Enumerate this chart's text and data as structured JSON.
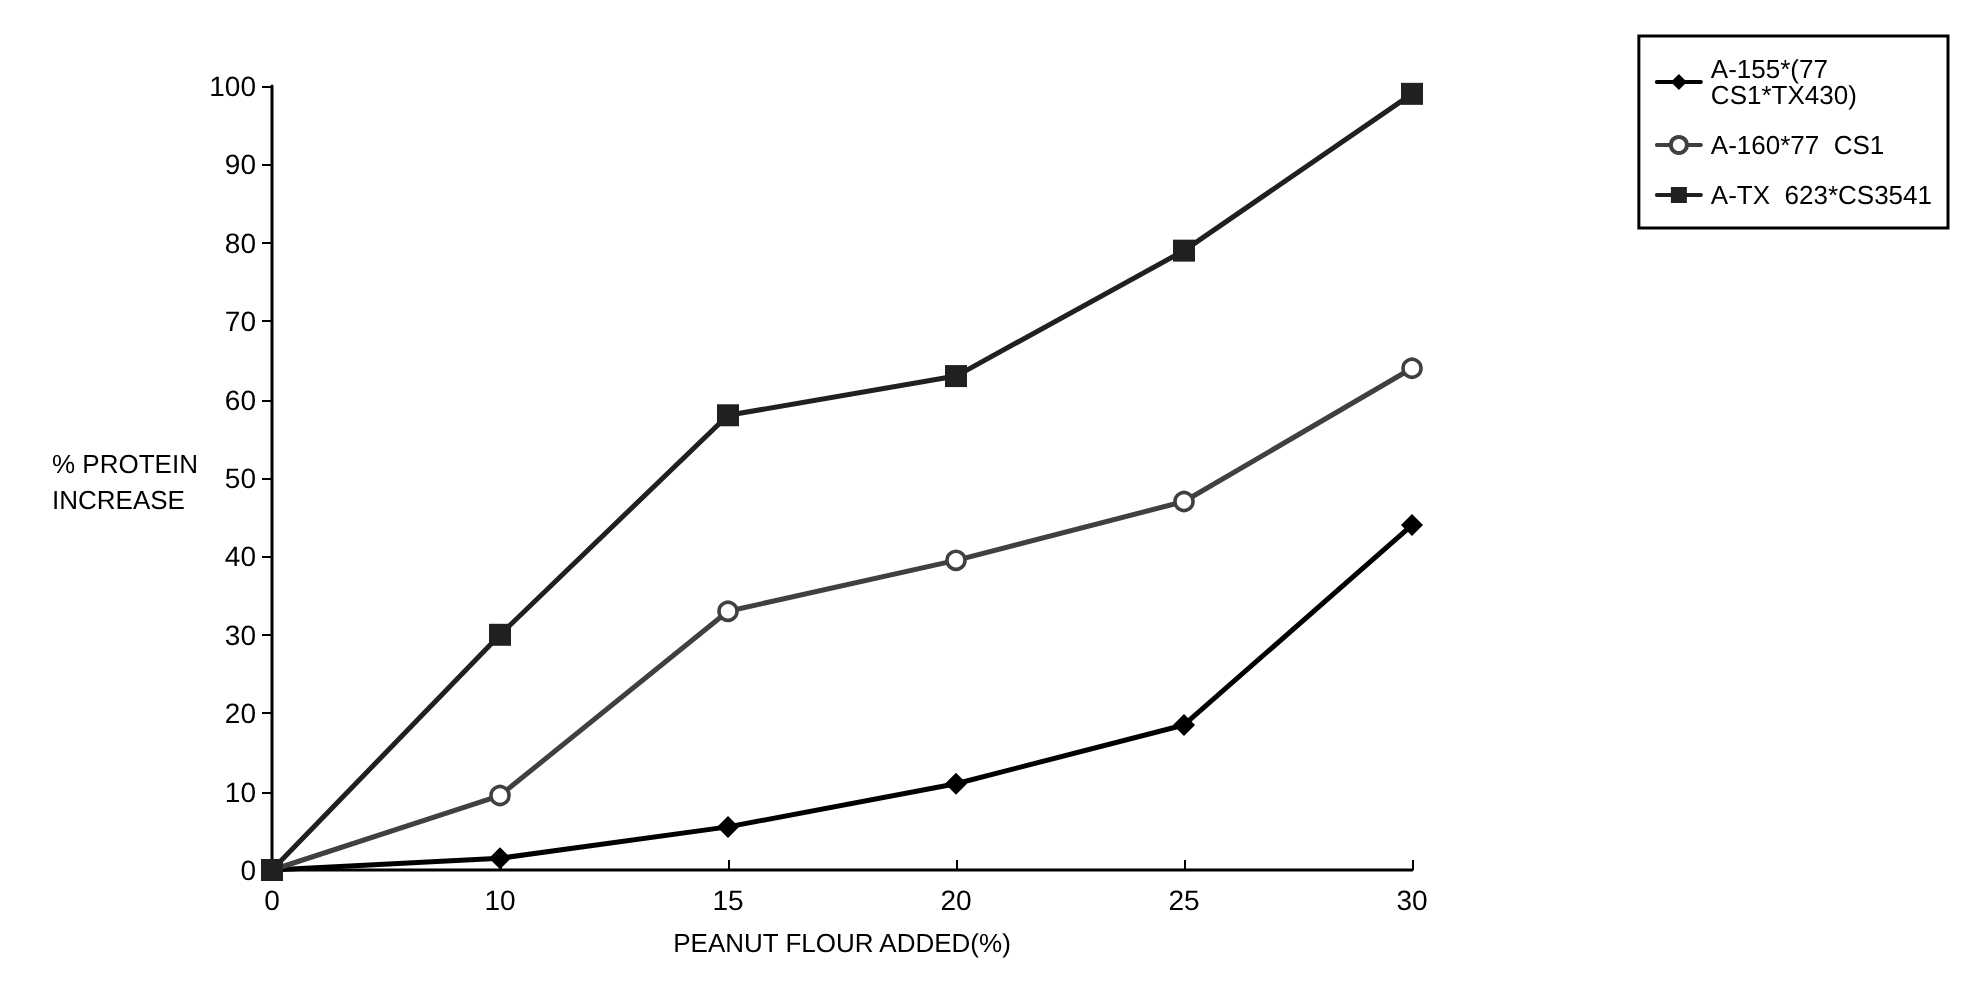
{
  "chart_data": {
    "type": "line",
    "xlabel": "PEANUT FLOUR ADDED(%)",
    "ylabel": "% PROTEIN INCREASE",
    "categories": [
      "0",
      "10",
      "15",
      "20",
      "25",
      "30"
    ],
    "series": [
      {
        "name": "A-155*(77 CS1*TX430)",
        "color": "#000000",
        "marker": "diamond",
        "values": [
          0,
          1.5,
          5.5,
          11,
          18.5,
          44
        ]
      },
      {
        "name": "A-160*77  CS1",
        "color": "#404040",
        "marker": "circle",
        "values": [
          0,
          9.5,
          33,
          39.5,
          47,
          64
        ]
      },
      {
        "name": "A-TX  623*CS3541",
        "color": "#202020",
        "marker": "square",
        "values": [
          0,
          30,
          58,
          63,
          79,
          99
        ]
      }
    ],
    "ylim": [
      0,
      100
    ],
    "yticks": [
      0,
      10,
      20,
      30,
      40,
      50,
      60,
      70,
      80,
      90,
      100
    ],
    "grid": false,
    "legend": "top right",
    "line_style": "solid"
  }
}
